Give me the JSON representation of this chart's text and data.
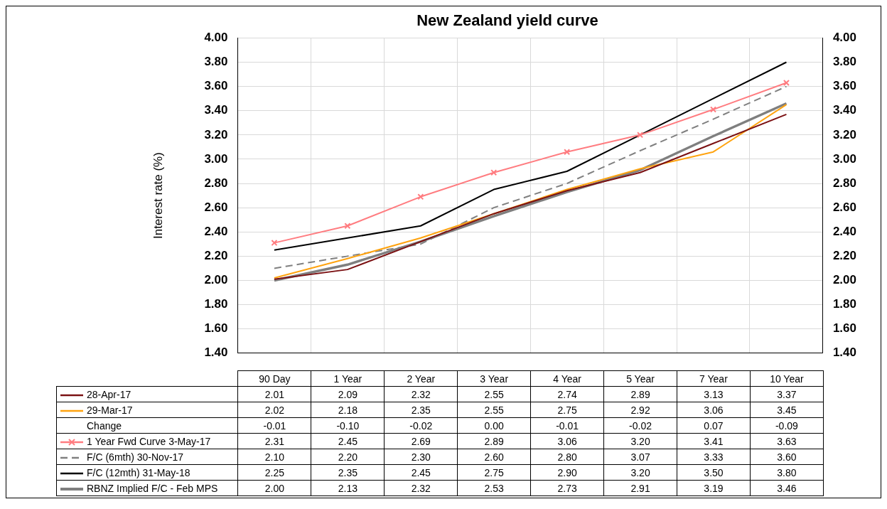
{
  "chart_data": {
    "type": "line",
    "title": "New Zealand yield curve",
    "ylabel": "Interest rate (%)",
    "categories": [
      "90 Day",
      "1 Year",
      "2 Year",
      "3 Year",
      "4 Year",
      "5 Year",
      "7 Year",
      "10 Year"
    ],
    "series": [
      {
        "name": "28-Apr-17",
        "color": "#7b1113",
        "values": [
          2.01,
          2.09,
          2.32,
          2.55,
          2.74,
          2.89,
          3.13,
          3.37
        ],
        "value_labels": [
          "2.01",
          "2.09",
          "2.32",
          "2.55",
          "2.74",
          "2.89",
          "3.13",
          "3.37"
        ]
      },
      {
        "name": "29-Mar-17",
        "color": "#ffa30f",
        "values": [
          2.02,
          2.18,
          2.35,
          2.55,
          2.75,
          2.92,
          3.06,
          3.45
        ],
        "value_labels": [
          "2.02",
          "2.18",
          "2.35",
          "2.55",
          "2.75",
          "2.92",
          "3.06",
          "3.45"
        ]
      },
      {
        "name": "Change",
        "values": [
          null,
          null,
          null,
          null,
          null,
          null,
          null,
          null
        ],
        "value_labels": [
          "-0.01",
          "-0.10",
          "-0.02",
          "0.00",
          "-0.01",
          "-0.02",
          "0.07",
          "-0.09"
        ]
      },
      {
        "name": "1 Year Fwd Curve  3-May-17",
        "color": "#ff7c80",
        "marker": "cross",
        "values": [
          2.31,
          2.45,
          2.69,
          2.89,
          3.06,
          3.2,
          3.41,
          3.63
        ],
        "value_labels": [
          "2.31",
          "2.45",
          "2.69",
          "2.89",
          "3.06",
          "3.20",
          "3.41",
          "3.63"
        ]
      },
      {
        "name": "F/C (6mth) 30-Nov-17",
        "color": "#808080",
        "line_style": "dashed",
        "values": [
          2.1,
          2.2,
          2.3,
          2.6,
          2.8,
          3.07,
          3.33,
          3.6
        ],
        "value_labels": [
          "2.10",
          "2.20",
          "2.30",
          "2.60",
          "2.80",
          "3.07",
          "3.33",
          "3.60"
        ]
      },
      {
        "name": "F/C (12mth) 31-May-18",
        "color": "#000000",
        "values": [
          2.25,
          2.35,
          2.45,
          2.75,
          2.9,
          3.2,
          3.5,
          3.8
        ],
        "value_labels": [
          "2.25",
          "2.35",
          "2.45",
          "2.75",
          "2.90",
          "3.20",
          "3.50",
          "3.80"
        ]
      },
      {
        "name": "RBNZ Implied F/C - Feb MPS",
        "color": "#7f7f7f",
        "values": [
          2.0,
          2.13,
          2.32,
          2.53,
          2.73,
          2.91,
          3.19,
          3.46
        ],
        "value_labels": [
          "2.00",
          "2.13",
          "2.32",
          "2.53",
          "2.73",
          "2.91",
          "3.19",
          "3.46"
        ]
      }
    ],
    "ylim": [
      1.4,
      4.0
    ],
    "yticks": [
      {
        "value": 1.4,
        "label": "1.40"
      },
      {
        "value": 1.6,
        "label": "1.60"
      },
      {
        "value": 1.8,
        "label": "1.80"
      },
      {
        "value": 2.0,
        "label": "2.00"
      },
      {
        "value": 2.2,
        "label": "2.20"
      },
      {
        "value": 2.4,
        "label": "2.40"
      },
      {
        "value": 2.6,
        "label": "2.60"
      },
      {
        "value": 2.8,
        "label": "2.80"
      },
      {
        "value": 3.0,
        "label": "3.00"
      },
      {
        "value": 3.2,
        "label": "3.20"
      },
      {
        "value": 3.4,
        "label": "3.40"
      },
      {
        "value": 3.6,
        "label": "3.60"
      },
      {
        "value": 3.8,
        "label": "3.80"
      },
      {
        "value": 4.0,
        "label": "4.00"
      }
    ],
    "y2lim": [
      1.4,
      4.0
    ],
    "y2ticks": [
      {
        "value": 1.4,
        "label": "1.40"
      },
      {
        "value": 1.6,
        "label": "1.60"
      },
      {
        "value": 1.8,
        "label": "1.80"
      },
      {
        "value": 2.0,
        "label": "2.00"
      },
      {
        "value": 2.2,
        "label": "2.20"
      },
      {
        "value": 2.4,
        "label": "2.40"
      },
      {
        "value": 2.6,
        "label": "2.60"
      },
      {
        "value": 2.8,
        "label": "2.80"
      },
      {
        "value": 3.0,
        "label": "3.00"
      },
      {
        "value": 3.2,
        "label": "3.20"
      },
      {
        "value": 3.4,
        "label": "3.40"
      },
      {
        "value": 3.6,
        "label": "3.60"
      },
      {
        "value": 3.8,
        "label": "3.80"
      },
      {
        "value": 4.0,
        "label": "4.00"
      }
    ],
    "grid": true,
    "legend": "bottom left",
    "marker": "none",
    "line_style": "solid"
  }
}
